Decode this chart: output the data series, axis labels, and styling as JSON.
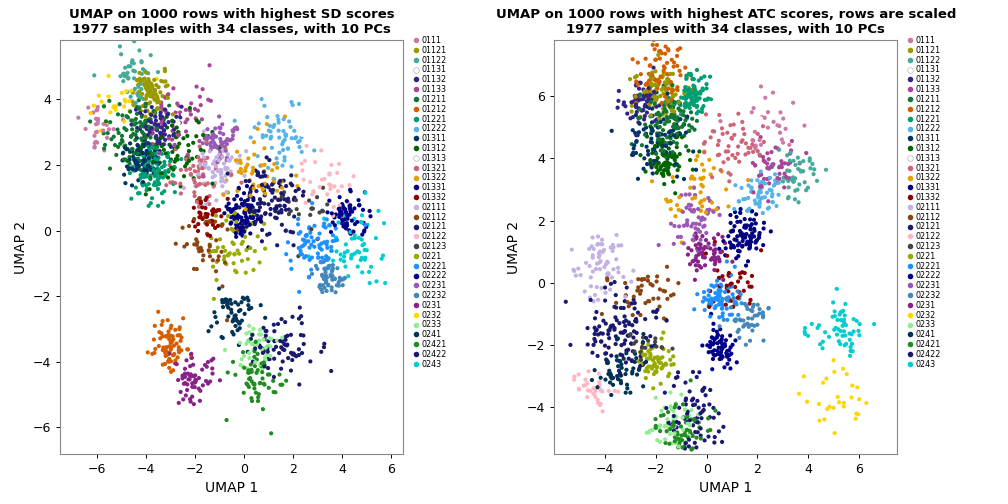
{
  "title1": "UMAP on 1000 rows with highest SD scores\n1977 samples with 34 classes, with 10 PCs",
  "title2": "UMAP on 1000 rows with highest ATC scores, rows are scaled\n1977 samples with 34 classes, with 10 PCs",
  "xlabel": "UMAP 1",
  "ylabel": "UMAP 2",
  "classes": [
    "0111",
    "01121",
    "01122",
    "01131",
    "01132",
    "01133",
    "01211",
    "01212",
    "01221",
    "01222",
    "01311",
    "01312",
    "01313",
    "01321",
    "01322",
    "01331",
    "01332",
    "02111",
    "02112",
    "02121",
    "02122",
    "02123",
    "0221",
    "02221",
    "02222",
    "02231",
    "02232",
    "0231",
    "0232",
    "0233",
    "0241",
    "02421",
    "02422",
    "0243"
  ],
  "colors": [
    "#CC79A7",
    "#999900",
    "#44AA99",
    "#FFFFFF",
    "#332288",
    "#AA4499",
    "#117733",
    "#D55E00",
    "#009E73",
    "#56B4E9",
    "#003366",
    "#006400",
    "#FFFFFF",
    "#CC6677",
    "#E69F00",
    "#000080",
    "#8B0000",
    "#C3B1E1",
    "#8B4513",
    "#191970",
    "#FFB6C1",
    "#444444",
    "#99AA00",
    "#1E90FF",
    "#00008B",
    "#9B59B6",
    "#4488BB",
    "#882288",
    "#FFD700",
    "#90EE90",
    "#003355",
    "#228B22",
    "#191970",
    "#00CED1"
  ],
  "xlim1": [
    -7.5,
    6.5
  ],
  "ylim1": [
    -6.8,
    5.8
  ],
  "xlim2": [
    -6.0,
    7.5
  ],
  "ylim2": [
    -5.5,
    7.8
  ],
  "xticks1": [
    -6,
    -4,
    -2,
    0,
    2,
    4,
    6
  ],
  "yticks1": [
    -6,
    -4,
    -2,
    0,
    2,
    4
  ],
  "xticks2": [
    -4,
    -2,
    0,
    2,
    4,
    6
  ],
  "yticks2": [
    -4,
    -2,
    0,
    2,
    4,
    6
  ],
  "n_points": 1977,
  "pt_size": 9,
  "legend_fontsize": 5.8,
  "title_fontsize": 9.5,
  "axis_label_fontsize": 10,
  "tick_fontsize": 9
}
